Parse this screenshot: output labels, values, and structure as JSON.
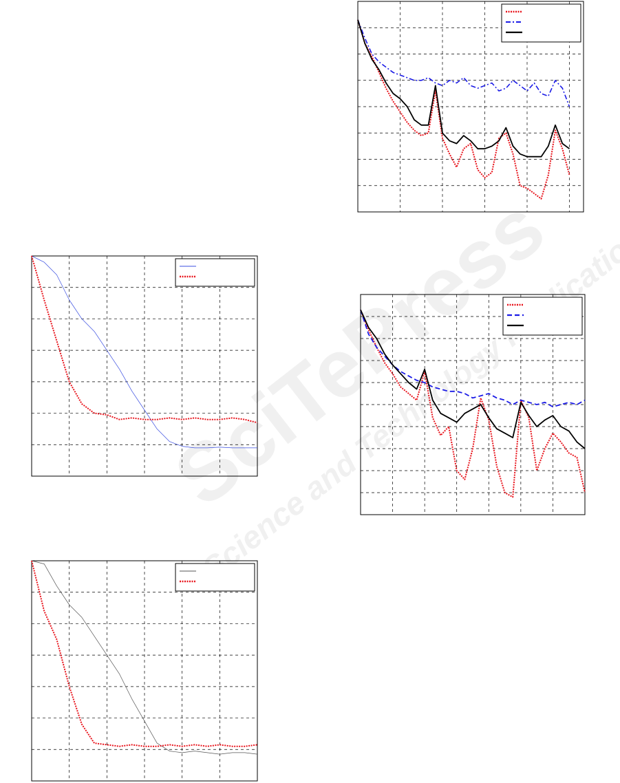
{
  "watermark": {
    "title": "SciTePress",
    "subtitle": "Science and Technology Publications"
  },
  "chart_data": [
    {
      "type": "line",
      "legend": "upper right",
      "grid": true,
      "xlim": [
        0,
        32
      ],
      "xticks": [
        0,
        6,
        12,
        18,
        24,
        30
      ],
      "ylim": [
        0,
        8
      ],
      "yticks": [
        0,
        1,
        2,
        3,
        4,
        5,
        6,
        7,
        8
      ],
      "x": [
        0,
        1,
        2,
        3,
        4,
        5,
        6,
        7,
        8,
        9,
        10,
        11,
        12,
        13,
        14,
        15,
        16,
        17,
        18,
        19,
        20,
        21,
        22,
        23,
        24,
        25,
        26,
        27,
        28,
        29,
        30
      ],
      "series": [
        {
          "color": "#e8141c",
          "style": "dotted",
          "values": [
            7.3,
            6.4,
            5.9,
            5.3,
            4.7,
            4.2,
            3.8,
            3.4,
            3.1,
            2.9,
            3.0,
            4.6,
            2.8,
            2.2,
            1.7,
            2.4,
            2.6,
            1.6,
            1.3,
            1.5,
            2.8,
            3.0,
            2.2,
            1.0,
            0.9,
            0.7,
            0.5,
            1.4,
            3.1,
            2.4,
            1.4
          ]
        },
        {
          "color": "#1a1ae6",
          "style": "dashdot",
          "values": [
            7.3,
            6.6,
            6.0,
            5.7,
            5.5,
            5.3,
            5.2,
            5.1,
            5.0,
            5.0,
            5.1,
            4.9,
            4.8,
            5.0,
            4.9,
            5.1,
            4.8,
            4.7,
            4.8,
            4.9,
            4.6,
            4.7,
            5.0,
            4.8,
            4.6,
            4.9,
            4.5,
            4.4,
            5.0,
            4.7,
            4.0
          ]
        },
        {
          "color": "#000000",
          "style": "solid",
          "values": [
            7.3,
            6.4,
            5.8,
            5.4,
            4.9,
            4.5,
            4.3,
            4.0,
            3.5,
            3.3,
            3.3,
            4.8,
            3.0,
            2.7,
            2.6,
            2.9,
            2.7,
            2.4,
            2.4,
            2.5,
            2.7,
            3.2,
            2.5,
            2.2,
            2.1,
            2.1,
            2.1,
            2.5,
            3.3,
            2.6,
            2.4
          ]
        }
      ]
    },
    {
      "type": "line",
      "legend": "upper right",
      "grid": true,
      "xlim": [
        0,
        36
      ],
      "xticks": [
        0,
        6,
        12,
        18,
        24,
        30,
        36
      ],
      "ylim": [
        0,
        7
      ],
      "yticks": [
        0,
        1,
        2,
        3,
        4,
        5,
        6,
        7
      ],
      "x": [
        0,
        2,
        4,
        6,
        8,
        10,
        12,
        14,
        16,
        18,
        20,
        22,
        24,
        26,
        28,
        30,
        32,
        34,
        36
      ],
      "series": [
        {
          "color": "#3a4ee0",
          "style": "thin",
          "values": [
            7.0,
            6.8,
            6.4,
            5.6,
            5.0,
            4.6,
            4.0,
            3.4,
            2.7,
            2.1,
            1.5,
            1.1,
            0.95,
            0.9,
            0.9,
            0.92,
            0.9,
            0.9,
            0.9
          ]
        },
        {
          "color": "#e8141c",
          "style": "dotted",
          "values": [
            7.0,
            5.6,
            4.3,
            3.0,
            2.3,
            2.0,
            1.95,
            1.8,
            1.85,
            1.8,
            1.8,
            1.85,
            1.8,
            1.85,
            1.8,
            1.8,
            1.85,
            1.8,
            1.7
          ]
        }
      ]
    },
    {
      "type": "line",
      "legend": "upper right",
      "grid": true,
      "xlim": [
        0,
        28
      ],
      "xticks": [
        0,
        4,
        8,
        12,
        16,
        20,
        24,
        28
      ],
      "ylim": [
        0,
        10
      ],
      "yticks": [
        0,
        1,
        2,
        3,
        4,
        5,
        6,
        7,
        8,
        9,
        10
      ],
      "x": [
        0,
        1,
        2,
        3,
        4,
        5,
        6,
        7,
        8,
        9,
        10,
        11,
        12,
        13,
        14,
        15,
        16,
        17,
        18,
        19,
        20,
        21,
        22,
        23,
        24,
        25,
        26,
        27,
        28
      ],
      "series": [
        {
          "color": "#e8141c",
          "style": "dotted",
          "values": [
            9.3,
            8.4,
            7.6,
            6.9,
            6.4,
            5.8,
            5.5,
            5.2,
            6.5,
            4.4,
            3.6,
            4.0,
            2.0,
            1.6,
            3.0,
            5.3,
            4.3,
            2.2,
            1.0,
            0.8,
            5.2,
            4.4,
            2.0,
            3.0,
            3.7,
            3.3,
            2.8,
            2.6,
            1.0
          ]
        },
        {
          "color": "#1a1ae6",
          "style": "dashed",
          "values": [
            9.3,
            8.2,
            7.6,
            7.2,
            6.8,
            6.5,
            6.3,
            6.1,
            6.0,
            5.8,
            5.7,
            5.6,
            5.6,
            5.5,
            5.3,
            5.4,
            5.5,
            5.3,
            5.2,
            5.0,
            5.2,
            5.1,
            5.0,
            5.1,
            4.9,
            5.0,
            5.1,
            5.0,
            5.2
          ]
        },
        {
          "color": "#000000",
          "style": "solid",
          "values": [
            9.3,
            8.5,
            8.0,
            7.3,
            6.8,
            6.4,
            6.0,
            5.7,
            6.6,
            5.2,
            4.6,
            4.4,
            4.2,
            4.6,
            4.8,
            5.0,
            4.4,
            3.9,
            3.7,
            3.5,
            5.1,
            4.5,
            4.0,
            4.3,
            4.5,
            4.0,
            3.8,
            3.3,
            3.0
          ]
        }
      ]
    },
    {
      "type": "line",
      "legend": "upper right",
      "grid": true,
      "xlim": [
        0,
        36
      ],
      "xticks": [
        0,
        6,
        12,
        18,
        24,
        30,
        36
      ],
      "ylim": [
        0,
        7
      ],
      "yticks": [
        0,
        1,
        2,
        3,
        4,
        5,
        6,
        7
      ],
      "x": [
        0,
        2,
        4,
        6,
        8,
        10,
        12,
        14,
        16,
        18,
        20,
        22,
        24,
        26,
        28,
        30,
        32,
        34,
        36
      ],
      "series": [
        {
          "color": "#555555",
          "style": "thin",
          "values": [
            7.0,
            6.9,
            6.2,
            5.6,
            5.2,
            4.6,
            4.0,
            3.4,
            2.6,
            1.9,
            1.2,
            0.95,
            0.9,
            0.95,
            0.9,
            0.85,
            0.9,
            0.9,
            0.85
          ]
        },
        {
          "color": "#e8141c",
          "style": "dotted",
          "values": [
            7.0,
            5.4,
            4.5,
            3.0,
            1.8,
            1.2,
            1.15,
            1.1,
            1.15,
            1.1,
            1.1,
            1.15,
            1.1,
            1.15,
            1.1,
            1.15,
            1.1,
            1.1,
            1.15
          ]
        }
      ]
    }
  ]
}
